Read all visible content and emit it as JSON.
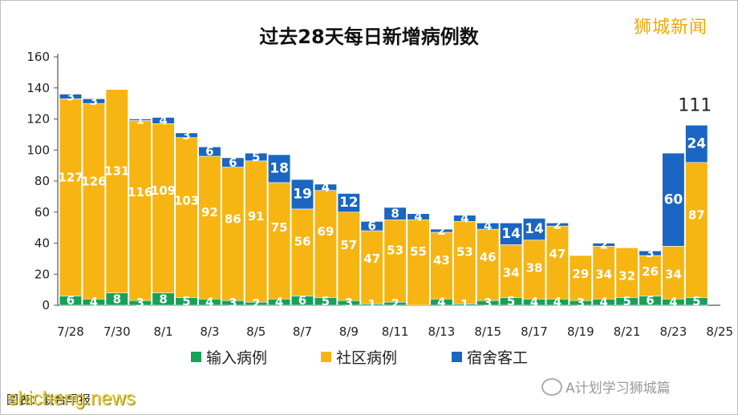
{
  "watermarks": {
    "top_right": "狮城新闻",
    "bottom_right": "A计划学习狮城篇",
    "bottom_left": "shicheng.news"
  },
  "source_text": "图表：联合早报",
  "colors": {
    "imported": "#18a05a",
    "community": "#f6b512",
    "dormitory": "#1a66c2"
  },
  "chart_data": {
    "type": "bar",
    "stacked": true,
    "title": "过去28天每日新增病例数",
    "ylim": [
      0,
      160
    ],
    "yticks": [
      0,
      20,
      40,
      60,
      80,
      100,
      120,
      140,
      160
    ],
    "grid": false,
    "legend_position": "bottom",
    "categories": [
      "7/28",
      "7/29",
      "7/30",
      "7/31",
      "8/1",
      "8/2",
      "8/3",
      "8/4",
      "8/5",
      "8/6",
      "8/7",
      "8/8",
      "8/9",
      "8/10",
      "8/11",
      "8/12",
      "8/13",
      "8/14",
      "8/15",
      "8/16",
      "8/17",
      "8/18",
      "8/19",
      "8/20",
      "8/21",
      "8/22",
      "8/23",
      "8/24"
    ],
    "xtick_labels": [
      "7/28",
      "7/30",
      "8/1",
      "8/3",
      "8/5",
      "8/7",
      "8/9",
      "8/11",
      "8/13",
      "8/15",
      "8/17",
      "8/19",
      "8/21",
      "8/23",
      "8/25"
    ],
    "series": [
      {
        "name": "输入病例",
        "color": "#18a05a",
        "values": [
          6,
          4,
          8,
          3,
          8,
          5,
          4,
          3,
          2,
          4,
          6,
          5,
          3,
          1,
          2,
          0,
          4,
          1,
          3,
          5,
          4,
          4,
          3,
          4,
          5,
          6,
          4,
          5
        ]
      },
      {
        "name": "社区病例",
        "color": "#f6b512",
        "values": [
          127,
          126,
          131,
          116,
          109,
          103,
          92,
          86,
          91,
          75,
          56,
          69,
          57,
          47,
          53,
          55,
          43,
          53,
          46,
          34,
          38,
          47,
          29,
          34,
          32,
          26,
          34,
          87
        ]
      },
      {
        "name": "宿舍客工",
        "color": "#1a66c2",
        "values": [
          3,
          3,
          0,
          1,
          4,
          3,
          6,
          6,
          5,
          18,
          19,
          4,
          12,
          6,
          8,
          4,
          2,
          4,
          4,
          14,
          14,
          2,
          0,
          2,
          0,
          3,
          60,
          24
        ]
      }
    ],
    "annotations": [
      {
        "category": "8/24",
        "text": "111"
      }
    ]
  }
}
